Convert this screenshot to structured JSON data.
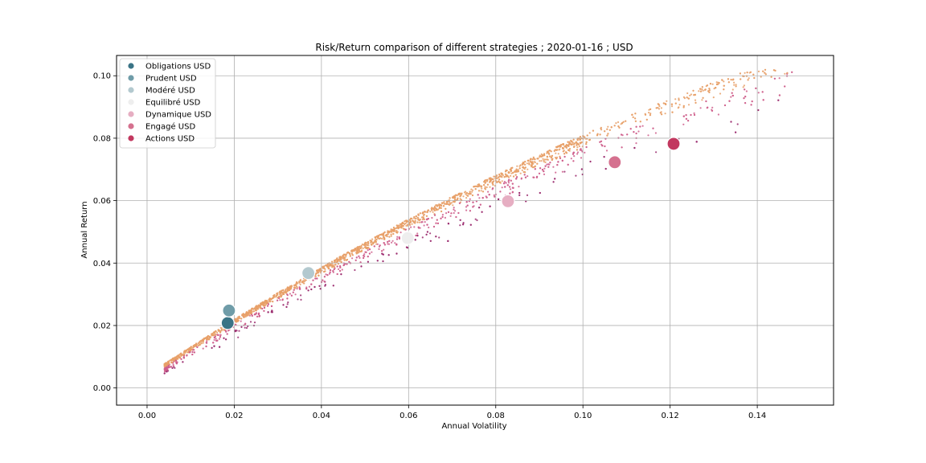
{
  "chart_data": {
    "type": "scatter",
    "title": "Risk/Return comparison of different strategies ; 2020-01-16 ; USD",
    "xlabel": "Annual Volatility",
    "ylabel": "Annual Return",
    "xlim": [
      -0.007,
      0.1575
    ],
    "ylim": [
      -0.0055,
      0.1065
    ],
    "xticks": [
      0.0,
      0.02,
      0.04,
      0.06,
      0.08,
      0.1,
      0.12,
      0.14
    ],
    "yticks": [
      0.0,
      0.02,
      0.04,
      0.06,
      0.08,
      0.1
    ],
    "xtick_labels": [
      "0.00",
      "0.02",
      "0.04",
      "0.06",
      "0.08",
      "0.10",
      "0.12",
      "0.14"
    ],
    "ytick_labels": [
      "0.00",
      "0.02",
      "0.04",
      "0.06",
      "0.08",
      "0.10"
    ],
    "grid": true,
    "legend_position": "top-left",
    "background_cloud": {
      "description_colors": [
        "#e8a068",
        "#cf5f8c",
        "#9b2b6e"
      ],
      "approx_point_count": 3500
    },
    "series": [
      {
        "name": "Obligations USD",
        "x": 0.0185,
        "y": 0.0208,
        "color": "#3a7486"
      },
      {
        "name": "Prudent USD",
        "x": 0.0188,
        "y": 0.0248,
        "color": "#6f9ca8"
      },
      {
        "name": "Modéré USD",
        "x": 0.037,
        "y": 0.0368,
        "color": "#b3c9cf"
      },
      {
        "name": "Equilibré USD",
        "x": 0.0598,
        "y": 0.048,
        "color": "#eeeeee"
      },
      {
        "name": "Dynamique USD",
        "x": 0.0828,
        "y": 0.0598,
        "color": "#e6aec2"
      },
      {
        "name": "Engagé USD",
        "x": 0.1073,
        "y": 0.0723,
        "color": "#d5718f"
      },
      {
        "name": "Actions USD",
        "x": 0.1208,
        "y": 0.0782,
        "color": "#c2385f"
      }
    ]
  }
}
